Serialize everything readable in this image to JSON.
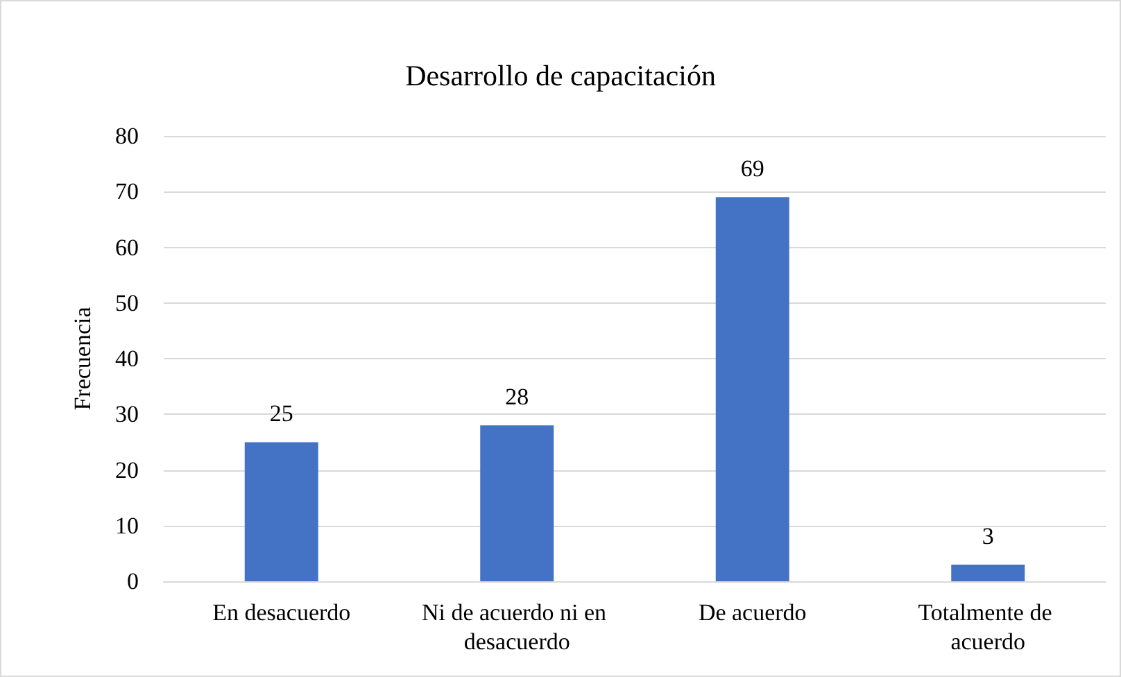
{
  "chart_data": {
    "type": "bar",
    "title": "Desarrollo de capacitación",
    "ylabel": "Frecuencia",
    "categories": [
      "En desacuerdo",
      "Ni de acuerdo ni en desacuerdo",
      "De acuerdo",
      "Totalmente de acuerdo"
    ],
    "values": [
      25,
      28,
      69,
      3
    ],
    "color": "#4472c4",
    "data_labels": true,
    "ylim": [
      0,
      80
    ],
    "yticks": [
      0,
      10,
      20,
      30,
      40,
      50,
      60,
      70,
      80
    ],
    "grid": "y"
  }
}
